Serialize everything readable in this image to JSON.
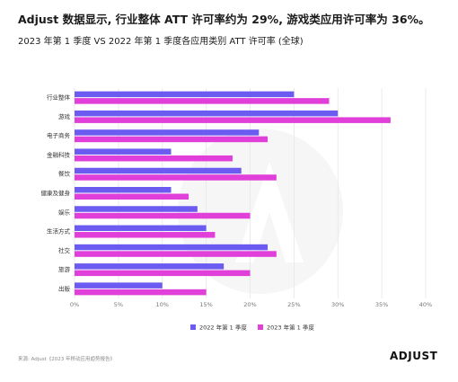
{
  "header": {
    "title": "Adjust 数据显示, 行业整体 ATT 许可率约为 29%, 游戏类应用许可率为 36%。",
    "subtitle": "2023 年第 1 季度 VS 2022 年第 1 季度各应用类别 ATT 许可率 (全球)"
  },
  "footer": {
    "source": "来源: Adjust《2023 年移动应用趋势报告》",
    "logo_text": "ADJUST"
  },
  "colors": {
    "series_2022": "#6b5bf0",
    "series_2023": "#e040d9",
    "grid": "#e6e6e6",
    "watermark": "#f6f6f6"
  },
  "chart_data": {
    "type": "bar",
    "orientation": "horizontal",
    "categories": [
      "行业整体",
      "游戏",
      "电子商务",
      "金融科技",
      "餐饮",
      "健康及健身",
      "娱乐",
      "生活方式",
      "社交",
      "旅游",
      "出版"
    ],
    "series": [
      {
        "name": "2022 年第 1 季度",
        "values": [
          25,
          30,
          21,
          11,
          19,
          11,
          14,
          15,
          22,
          17,
          10
        ]
      },
      {
        "name": "2023 年第 1 季度",
        "values": [
          29,
          36,
          22,
          18,
          23,
          13,
          20,
          16,
          23,
          20,
          15
        ]
      }
    ],
    "xlim": [
      0,
      40
    ],
    "xticks": [
      "0%",
      "5%",
      "10%",
      "15%",
      "20%",
      "25%",
      "30%",
      "35%",
      "40%"
    ],
    "tick_values": [
      0,
      5,
      10,
      15,
      20,
      25,
      30,
      35,
      40
    ],
    "grid": true,
    "legend_position": "bottom"
  }
}
